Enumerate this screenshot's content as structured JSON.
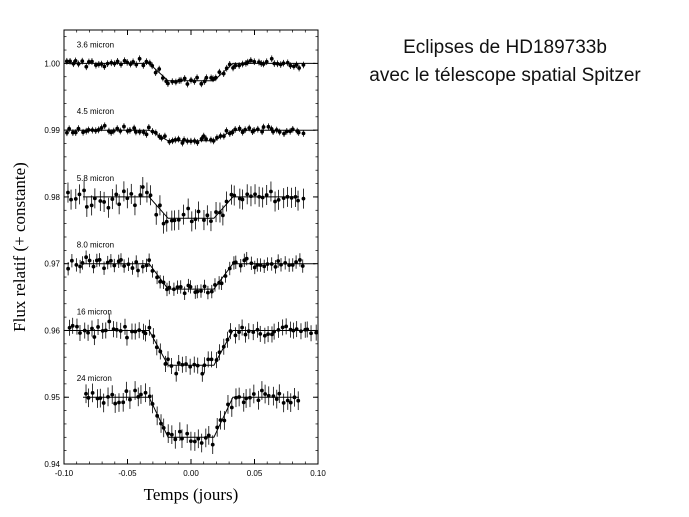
{
  "slide": {
    "title_line1": "Eclipses de HD189733b",
    "title_line2": "avec le télescope spatial Spitzer"
  },
  "chart_data": {
    "type": "scatter",
    "xlabel": "Temps (jours)",
    "ylabel": "Flux relatif (+ constante)",
    "xlim": [
      -0.1,
      0.1
    ],
    "ylim": [
      0.94,
      1.005
    ],
    "xticks": [
      "-0.10",
      "-0.05",
      "0.00",
      "0.05",
      "0.10"
    ],
    "xtick_values": [
      -0.1,
      -0.05,
      0.0,
      0.05,
      0.1
    ],
    "yticks": [
      "0.94",
      "0.95",
      "0.96",
      "0.97",
      "0.98",
      "0.99",
      "1.00"
    ],
    "ytick_values": [
      0.94,
      0.95,
      0.96,
      0.97,
      0.98,
      0.99,
      1.0
    ],
    "grid": false,
    "eclipse": {
      "ingress_start": -0.033,
      "ingress_end": -0.018,
      "egress_start": 0.018,
      "egress_end": 0.033
    },
    "series": [
      {
        "name": "3.6 micron",
        "baseline": 1.0,
        "depth": 0.0026,
        "noise": 0.0006,
        "errbar": 0.0005,
        "x_start": -0.098,
        "x_end": 0.088,
        "n": 75,
        "model_x": [
          -0.098,
          0.098
        ]
      },
      {
        "name": "4.5 micron",
        "baseline": 0.99,
        "depth": 0.0016,
        "noise": 0.0006,
        "errbar": 0.0005,
        "x_start": -0.098,
        "x_end": 0.088,
        "n": 75,
        "model_x": [
          -0.098,
          0.098
        ]
      },
      {
        "name": "5.8 micron",
        "baseline": 0.98,
        "depth": 0.0032,
        "noise": 0.0014,
        "errbar": 0.0015,
        "x_start": -0.097,
        "x_end": 0.088,
        "n": 60,
        "model_x": [
          -0.085,
          0.085
        ]
      },
      {
        "name": "8.0 micron",
        "baseline": 0.97,
        "depth": 0.0038,
        "noise": 0.0009,
        "errbar": 0.001,
        "x_start": -0.096,
        "x_end": 0.088,
        "n": 68,
        "model_x": [
          -0.085,
          0.098
        ]
      },
      {
        "name": "16 micron",
        "baseline": 0.96,
        "depth": 0.0052,
        "noise": 0.001,
        "errbar": 0.0012,
        "x_start": -0.096,
        "x_end": 0.098,
        "n": 68,
        "model_x": [
          -0.098,
          0.098
        ]
      },
      {
        "name": "24 micron",
        "baseline": 0.95,
        "depth": 0.006,
        "noise": 0.0011,
        "errbar": 0.0014,
        "x_start": -0.083,
        "x_end": 0.085,
        "n": 58,
        "model_x": [
          -0.085,
          0.085
        ]
      }
    ]
  }
}
